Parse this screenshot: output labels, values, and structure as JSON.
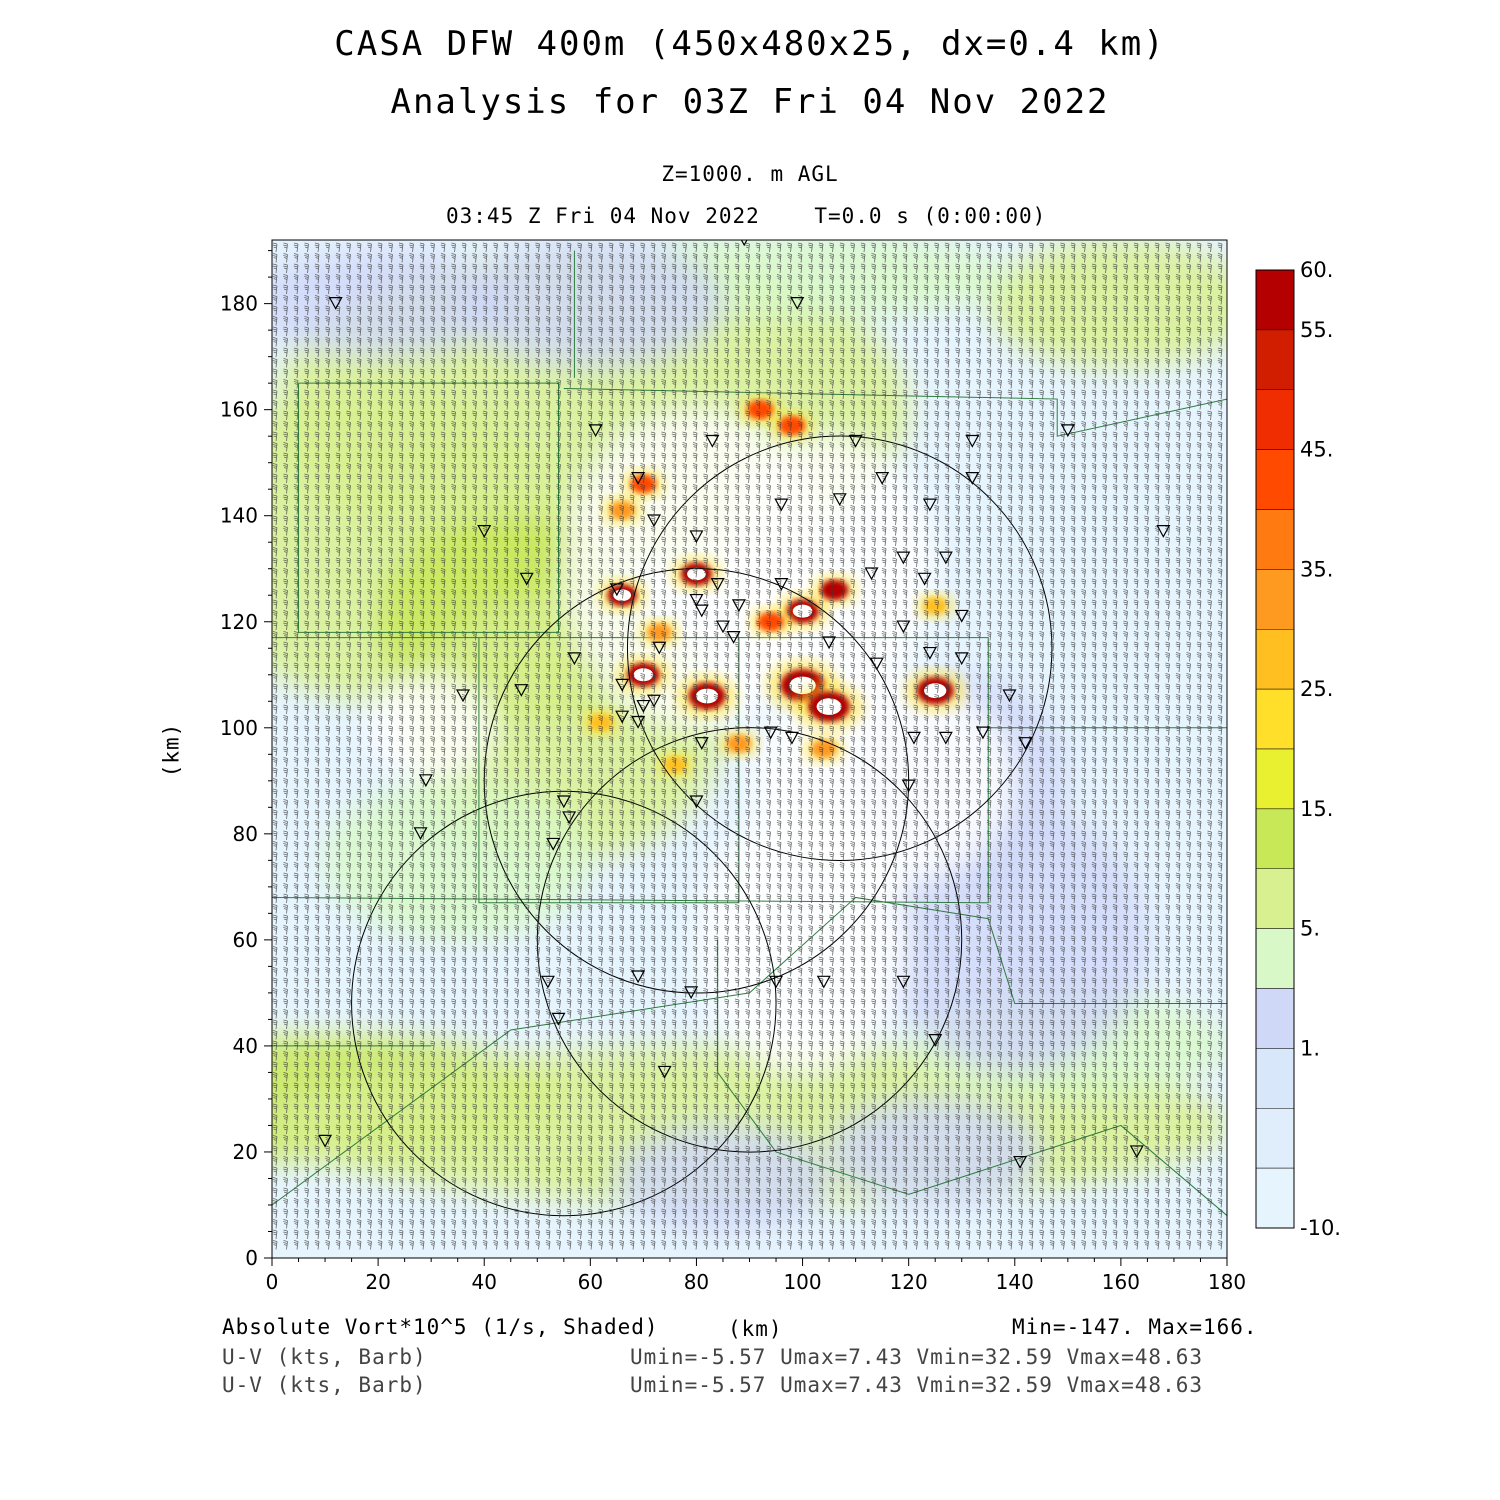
{
  "header": {
    "title_line1": "CASA DFW 400m (450x480x25, dx=0.4 km)",
    "title_line2": "Analysis for 03Z Fri 04 Nov 2022",
    "level": "Z=1000. m AGL",
    "valid_time": "03:45 Z Fri 04 Nov 2022    T=0.0 s (0:00:00)"
  },
  "axes": {
    "x_label": "(km)",
    "y_label": "(km)",
    "x_ticks": [
      "0",
      "20",
      "40",
      "60",
      "80",
      "100",
      "120",
      "140",
      "160",
      "180"
    ],
    "y_ticks": [
      "0",
      "20",
      "40",
      "60",
      "80",
      "100",
      "120",
      "140",
      "160",
      "180"
    ],
    "x_range": [
      0,
      180
    ],
    "y_range": [
      0,
      192
    ]
  },
  "colorbar": {
    "labels": [
      "60.",
      "55.",
      "45.",
      "35.",
      "25.",
      "15.",
      "5.",
      "1.",
      "-10."
    ],
    "colors": [
      "#b40000",
      "#d21e00",
      "#ef2d00",
      "#ff4a00",
      "#ff7a10",
      "#ff9a20",
      "#ffbf20",
      "#ffdf2a",
      "#e8f030",
      "#c8e858",
      "#d8f090",
      "#d8f8c8",
      "#d0d8f8",
      "#d8e8fa",
      "#e0eefc",
      "#e6f4fe"
    ]
  },
  "footer": {
    "field_label": "Absolute Vort*10^5 (1/s, Shaded)",
    "x_unit": "(km)",
    "minmax": "Min=-147. Max=166.",
    "barb_label_1": "U-V (kts, Barb)",
    "barb_stats_1": "Umin=-5.57 Umax=7.43 Vmin=32.59 Vmax=48.63",
    "barb_label_2": "U-V (kts, Barb)",
    "barb_stats_2": "Umin=-5.57 Umax=7.43 Vmin=32.59 Vmax=48.63"
  },
  "map": {
    "radar_rings_km": [
      {
        "cx": 107,
        "cy": 115,
        "r": 40
      },
      {
        "cx": 80,
        "cy": 90,
        "r": 40
      },
      {
        "cx": 90,
        "cy": 60,
        "r": 40
      },
      {
        "cx": 55,
        "cy": 48,
        "r": 40
      }
    ],
    "vorticity_blobs_km": [
      {
        "x": 100,
        "y": 108,
        "v": 166
      },
      {
        "x": 105,
        "y": 104,
        "v": 150
      },
      {
        "x": 82,
        "y": 106,
        "v": 120
      },
      {
        "x": 125,
        "y": 107,
        "v": 120
      },
      {
        "x": 70,
        "y": 110,
        "v": 90
      },
      {
        "x": 66,
        "y": 125,
        "v": 70
      },
      {
        "x": 80,
        "y": 129,
        "v": 80
      },
      {
        "x": 100,
        "y": 122,
        "v": 90
      },
      {
        "x": 106,
        "y": 126,
        "v": 60
      },
      {
        "x": 94,
        "y": 120,
        "v": 50
      },
      {
        "x": 92,
        "y": 160,
        "v": 50
      },
      {
        "x": 98,
        "y": 157,
        "v": 50
      },
      {
        "x": 70,
        "y": 146,
        "v": 45
      },
      {
        "x": 66,
        "y": 141,
        "v": 40
      },
      {
        "x": 104,
        "y": 96,
        "v": 40
      },
      {
        "x": 88,
        "y": 97,
        "v": 35
      },
      {
        "x": 73,
        "y": 118,
        "v": 35
      },
      {
        "x": 125,
        "y": 123,
        "v": 30
      },
      {
        "x": 62,
        "y": 101,
        "v": 30
      },
      {
        "x": 76,
        "y": 93,
        "v": 25
      }
    ],
    "wind": {
      "u_min": -5.57,
      "u_max": 7.43,
      "v_min": 32.59,
      "v_max": 48.63
    }
  }
}
